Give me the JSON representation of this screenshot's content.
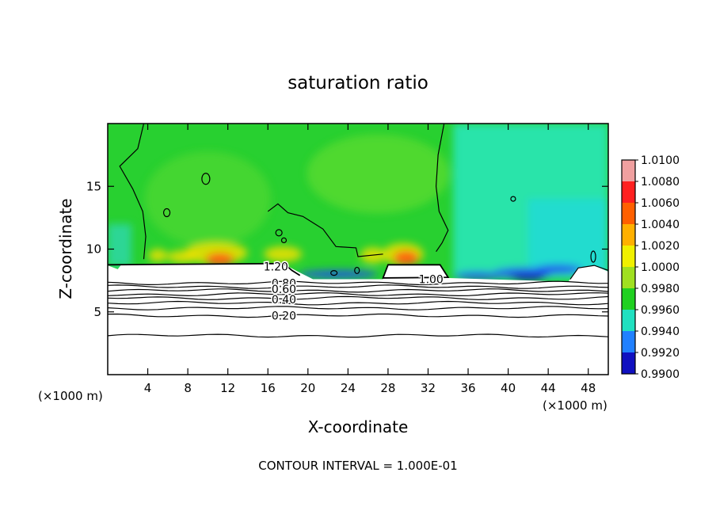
{
  "chart_data": {
    "type": "heatmap",
    "title": "saturation ratio",
    "xlabel": "X-coordinate",
    "ylabel": "Z-coordinate",
    "x_unit_left": "(×1000 m)",
    "x_unit_right": "(×1000 m)",
    "footer": "CONTOUR INTERVAL = 1.000E-01",
    "xlim": [
      0,
      50
    ],
    "ylim": [
      0,
      20
    ],
    "x_ticks": [
      4,
      8,
      12,
      16,
      20,
      24,
      28,
      32,
      36,
      40,
      44,
      48
    ],
    "y_ticks": [
      5,
      10,
      15
    ],
    "colorbar": {
      "levels": [
        "1.0100",
        "1.0080",
        "1.0060",
        "1.0040",
        "1.0020",
        "1.0000",
        "0.9980",
        "0.9960",
        "0.9940",
        "0.9920",
        "0.9900"
      ],
      "colors": [
        "#f0a0a0",
        "#ff2020",
        "#ff6000",
        "#ffb000",
        "#f0f000",
        "#a0e020",
        "#20d020",
        "#20e0c0",
        "#2080ff",
        "#1010c0",
        "#5010a0"
      ]
    },
    "contour_labels": [
      {
        "text": "1.20",
        "x": 16.8,
        "z": 8.6
      },
      {
        "text": "1.00",
        "x": 32.3,
        "z": 7.6
      },
      {
        "text": "0.80",
        "x": 17.6,
        "z": 7.3
      },
      {
        "text": "0.60",
        "x": 17.6,
        "z": 6.8
      },
      {
        "text": "0.40",
        "x": 17.6,
        "z": 6.0
      },
      {
        "text": "0.20",
        "x": 17.6,
        "z": 4.7
      }
    ],
    "contour_levels_z": [
      3.1,
      4.7,
      5.3,
      5.7,
      6.1,
      6.4,
      6.7,
      7.0,
      7.3
    ]
  }
}
